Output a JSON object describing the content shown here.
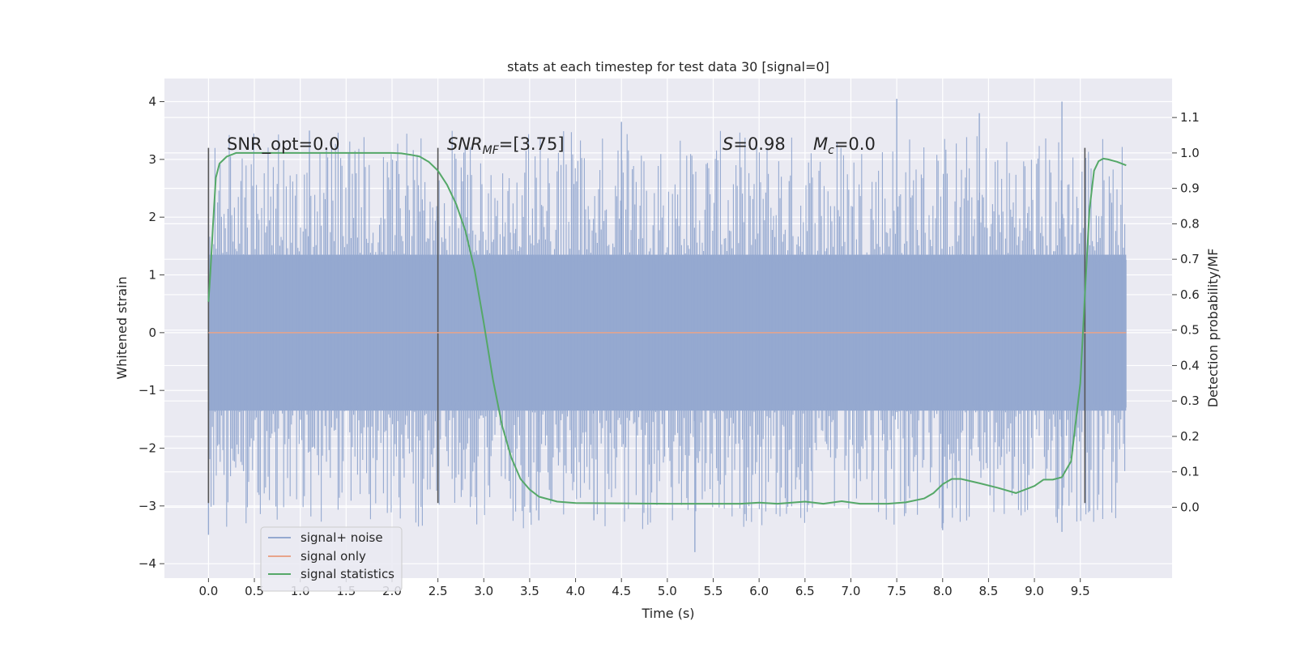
{
  "chart_data": {
    "type": "line",
    "title": "stats at each timestep for test data 30 [signal=0]",
    "xlabel": "Time (s)",
    "ylabel_left": "Whitened strain",
    "ylabel_right": "Detection probability/MF",
    "xlim": [
      -0.48,
      10.5
    ],
    "ylim_left": [
      -4.25,
      4.4
    ],
    "ylim_right": [
      -0.2,
      1.21
    ],
    "x_ticks": [
      "0.0",
      "0.5",
      "1.0",
      "1.5",
      "2.0",
      "2.5",
      "3.0",
      "3.5",
      "4.0",
      "4.5",
      "5.0",
      "5.5",
      "6.0",
      "6.5",
      "7.0",
      "7.5",
      "8.0",
      "8.5",
      "9.0",
      "9.5"
    ],
    "y_left_ticks": [
      "4",
      "3",
      "2",
      "1",
      "0",
      "−1",
      "−2",
      "−3",
      "−4"
    ],
    "y_right_ticks": [
      "1.1",
      "1.0",
      "0.9",
      "0.8",
      "0.7",
      "0.6",
      "0.5",
      "0.4",
      "0.3",
      "0.2",
      "0.1",
      "0.0"
    ],
    "grid": true,
    "legend_placement": "lower-left",
    "series": [
      {
        "name": "signal+ noise",
        "color": "#95a9d0",
        "axis": "left",
        "style": "dense-noise",
        "x_range": [
          0.0,
          10.0
        ],
        "typical_amplitude": 1.35,
        "extreme_range": [
          -3.8,
          4.05
        ]
      },
      {
        "name": "signal only",
        "color": "#e8a48a",
        "axis": "left",
        "x": [
          0.0,
          10.0
        ],
        "y": [
          0.0,
          0.0
        ]
      },
      {
        "name": "signal statistics",
        "color": "#55a868",
        "axis": "right",
        "x": [
          0.0,
          0.02,
          0.05,
          0.08,
          0.12,
          0.2,
          0.3,
          0.5,
          1.0,
          1.5,
          2.0,
          2.1,
          2.2,
          2.3,
          2.4,
          2.5,
          2.6,
          2.7,
          2.8,
          2.9,
          3.0,
          3.1,
          3.2,
          3.3,
          3.4,
          3.5,
          3.6,
          3.8,
          4.0,
          4.5,
          5.0,
          5.5,
          5.8,
          6.0,
          6.2,
          6.5,
          6.7,
          6.9,
          7.1,
          7.4,
          7.6,
          7.8,
          7.9,
          8.0,
          8.1,
          8.2,
          8.4,
          8.6,
          8.8,
          9.0,
          9.1,
          9.2,
          9.3,
          9.4,
          9.5,
          9.55,
          9.6,
          9.65,
          9.7,
          9.75,
          9.8,
          9.9,
          10.0
        ],
        "y": [
          0.58,
          0.66,
          0.8,
          0.93,
          0.97,
          0.99,
          1.0,
          1.0,
          1.0,
          1.0,
          1.0,
          0.999,
          0.995,
          0.99,
          0.975,
          0.95,
          0.91,
          0.855,
          0.78,
          0.67,
          0.52,
          0.36,
          0.23,
          0.14,
          0.08,
          0.05,
          0.03,
          0.016,
          0.012,
          0.011,
          0.01,
          0.01,
          0.01,
          0.013,
          0.01,
          0.016,
          0.01,
          0.017,
          0.01,
          0.01,
          0.014,
          0.025,
          0.04,
          0.065,
          0.08,
          0.08,
          0.068,
          0.055,
          0.04,
          0.06,
          0.078,
          0.078,
          0.085,
          0.13,
          0.35,
          0.6,
          0.84,
          0.95,
          0.977,
          0.984,
          0.982,
          0.975,
          0.965
        ]
      }
    ],
    "markers": [
      {
        "x": 0.0,
        "y_range": [
          -2.95,
          3.2
        ]
      },
      {
        "x": 2.5,
        "y_range": [
          -2.95,
          3.2
        ]
      },
      {
        "x": 9.55,
        "y_range": [
          -2.95,
          3.2
        ]
      }
    ],
    "annotations": {
      "snr_opt": "SNR_opt=0.0",
      "snr_mf_main": "SNR",
      "snr_mf_sub": "MF",
      "snr_mf_value": "=[3.75]",
      "s_main": "S",
      "s_value": "=0.98",
      "mc_main": "M",
      "mc_sub": "c",
      "mc_value": "=0.0"
    },
    "legend": [
      {
        "label": "signal+ noise",
        "color": "#95a9d0"
      },
      {
        "label": "signal only",
        "color": "#e8a48a"
      },
      {
        "label": "signal statistics",
        "color": "#55a868"
      }
    ]
  }
}
